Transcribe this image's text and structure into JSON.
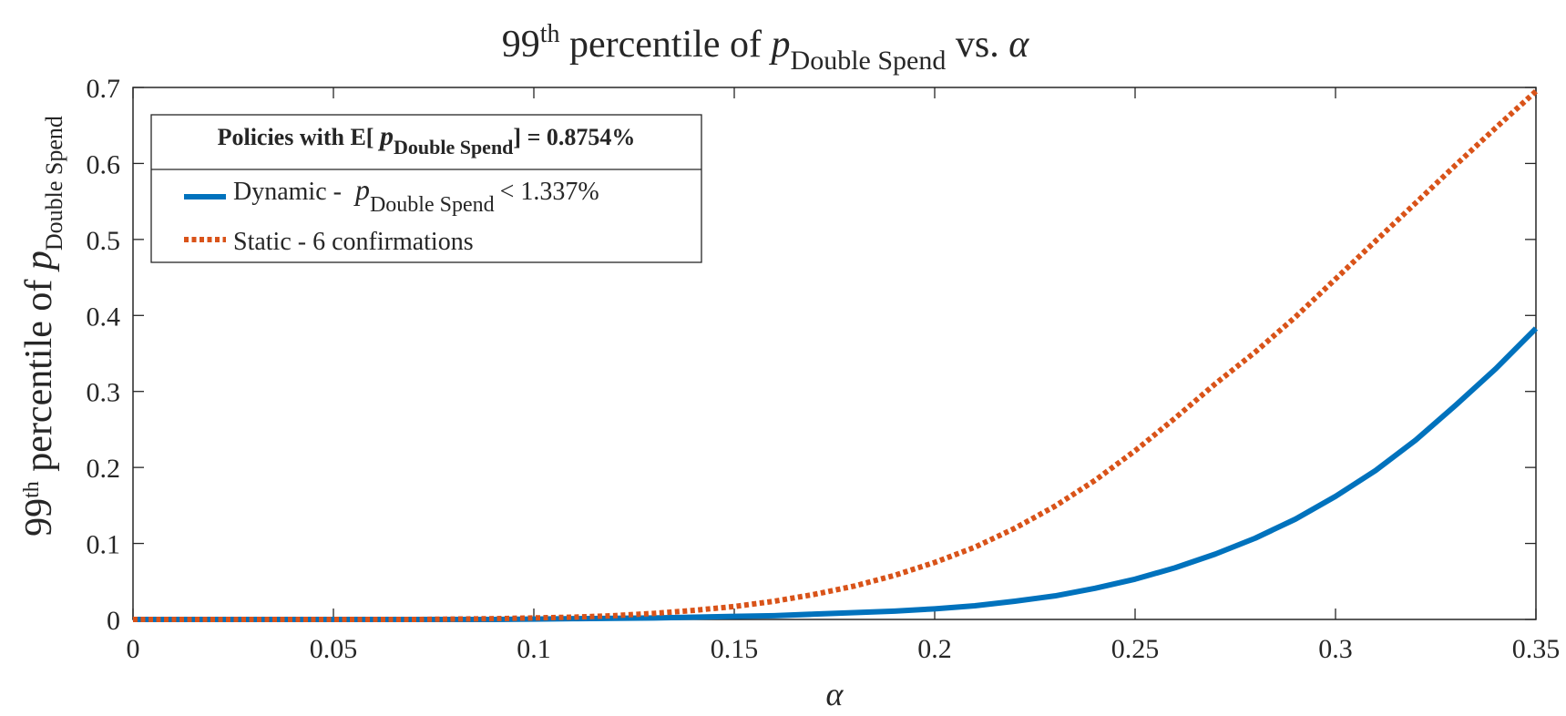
{
  "chart_data": {
    "type": "line",
    "title": {
      "prefix": "99",
      "sup": "th",
      "middle": " percentile of ",
      "var": "p",
      "sub": "Double Spend",
      "suffix": " vs. ",
      "greek": "α"
    },
    "xlabel": "α",
    "ylabel": {
      "prefix": "99",
      "sup": "th",
      "middle": " percentile of ",
      "var": "p",
      "sub": "Double Spend"
    },
    "xlim": [
      0,
      0.35
    ],
    "ylim": [
      0,
      0.7
    ],
    "x_ticks": [
      0,
      0.05,
      0.1,
      0.15,
      0.2,
      0.25,
      0.3,
      0.35
    ],
    "x_tick_labels": [
      "0",
      "0.05",
      "0.1",
      "0.15",
      "0.2",
      "0.25",
      "0.3",
      "0.35"
    ],
    "y_ticks": [
      0,
      0.1,
      0.2,
      0.3,
      0.4,
      0.5,
      0.6,
      0.7
    ],
    "y_tick_labels": [
      "0",
      "0.1",
      "0.2",
      "0.3",
      "0.4",
      "0.5",
      "0.6",
      "0.7"
    ],
    "grid": false,
    "legend": {
      "placement": "top-left",
      "title": {
        "prefix": "Policies with E[ ",
        "var": "p",
        "sub": "Double Spend",
        "suffix": "] = 0.8754%"
      },
      "entries": [
        {
          "prefix": "Dynamic - ",
          "var": "p",
          "sub": "Double Spend",
          "suffix": "< 1.337%"
        },
        {
          "prefix": "Static - 6 confirmations"
        }
      ]
    },
    "series": [
      {
        "name": "Dynamic",
        "color": "#0072BD",
        "style": "solid",
        "x": [
          0,
          0.01,
          0.02,
          0.03,
          0.04,
          0.05,
          0.06,
          0.07,
          0.08,
          0.09,
          0.1,
          0.11,
          0.12,
          0.13,
          0.14,
          0.15,
          0.16,
          0.17,
          0.18,
          0.19,
          0.2,
          0.21,
          0.22,
          0.23,
          0.24,
          0.25,
          0.26,
          0.27,
          0.28,
          0.29,
          0.3,
          0.31,
          0.32,
          0.33,
          0.34,
          0.35
        ],
        "values": [
          0,
          0,
          0,
          0,
          0,
          0,
          0,
          0,
          0,
          0,
          0.0005,
          0.001,
          0.0015,
          0.002,
          0.003,
          0.004,
          0.005,
          0.007,
          0.009,
          0.011,
          0.014,
          0.018,
          0.024,
          0.031,
          0.041,
          0.053,
          0.068,
          0.086,
          0.107,
          0.132,
          0.162,
          0.196,
          0.236,
          0.282,
          0.33,
          0.383
        ]
      },
      {
        "name": "Static",
        "color": "#D95319",
        "style": "dotted",
        "x": [
          0,
          0.01,
          0.02,
          0.03,
          0.04,
          0.05,
          0.06,
          0.07,
          0.08,
          0.09,
          0.1,
          0.11,
          0.12,
          0.13,
          0.14,
          0.15,
          0.16,
          0.17,
          0.18,
          0.19,
          0.2,
          0.21,
          0.22,
          0.23,
          0.24,
          0.25,
          0.26,
          0.27,
          0.28,
          0.29,
          0.3,
          0.31,
          0.32,
          0.33,
          0.34,
          0.35
        ],
        "values": [
          0,
          0,
          0,
          0,
          0,
          0,
          0,
          0,
          0.0005,
          0.001,
          0.002,
          0.003,
          0.005,
          0.008,
          0.012,
          0.017,
          0.024,
          0.033,
          0.044,
          0.058,
          0.075,
          0.095,
          0.12,
          0.149,
          0.183,
          0.222,
          0.265,
          0.31,
          0.352,
          0.398,
          0.448,
          0.498,
          0.548,
          0.598,
          0.647,
          0.695
        ]
      }
    ]
  }
}
